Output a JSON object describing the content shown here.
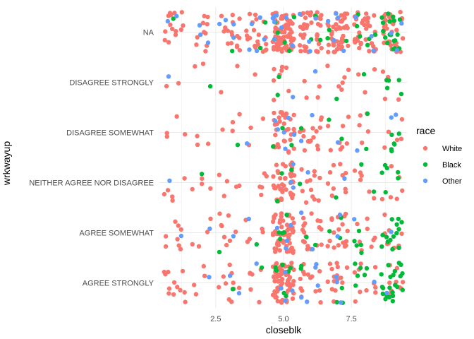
{
  "chart_data": {
    "type": "scatter",
    "jitter": true,
    "xlabel": "closeblk",
    "ylabel": "wrkwayup",
    "xlim": [
      0.45,
      9.55
    ],
    "x_ticks": [
      2.5,
      5.0,
      7.5
    ],
    "x_tick_labels": [
      "2.5",
      "5.0",
      "7.5"
    ],
    "categories": [
      "AGREE STRONGLY",
      "AGREE SOMEWHAT",
      "NEITHER AGREE NOR DISAGREE",
      "DISAGREE SOMEWHAT",
      "DISAGREE STRONGLY",
      "NA"
    ],
    "x_values": [
      1,
      2,
      3,
      4,
      5,
      6,
      7,
      8,
      9
    ],
    "grid": true,
    "legend": {
      "title": "race",
      "position": "right",
      "entries": [
        {
          "label": "White",
          "color": "#F8766D"
        },
        {
          "label": "Black",
          "color": "#00BA38"
        },
        {
          "label": "Other",
          "color": "#619CFF"
        }
      ]
    },
    "series": [
      {
        "name": "White",
        "color": "#F8766D",
        "counts": [
          [
            12,
            4,
            10,
            6,
            65,
            14,
            15,
            10,
            10
          ],
          [
            8,
            4,
            8,
            5,
            55,
            18,
            18,
            8,
            10
          ],
          [
            5,
            4,
            5,
            5,
            40,
            12,
            10,
            6,
            6
          ],
          [
            4,
            3,
            4,
            3,
            32,
            15,
            8,
            5,
            5
          ],
          [
            2,
            2,
            2,
            1,
            8,
            4,
            6,
            3,
            4
          ],
          [
            14,
            10,
            16,
            20,
            85,
            40,
            45,
            35,
            35
          ]
        ]
      },
      {
        "name": "Black",
        "color": "#00BA38",
        "counts": [
          [
            0,
            0,
            1,
            1,
            8,
            2,
            3,
            6,
            22
          ],
          [
            0,
            0,
            1,
            1,
            5,
            2,
            3,
            5,
            14
          ],
          [
            0,
            1,
            0,
            0,
            3,
            1,
            1,
            2,
            6
          ],
          [
            0,
            0,
            1,
            0,
            3,
            1,
            2,
            2,
            6
          ],
          [
            0,
            1,
            0,
            0,
            2,
            0,
            1,
            1,
            5
          ],
          [
            1,
            0,
            1,
            2,
            6,
            3,
            3,
            6,
            18
          ]
        ]
      },
      {
        "name": "Other",
        "color": "#619CFF",
        "counts": [
          [
            0,
            1,
            2,
            1,
            4,
            5,
            3,
            1,
            1
          ],
          [
            1,
            1,
            1,
            1,
            4,
            2,
            2,
            1,
            1
          ],
          [
            1,
            0,
            0,
            0,
            3,
            1,
            1,
            0,
            0
          ],
          [
            0,
            0,
            0,
            1,
            6,
            2,
            1,
            1,
            2
          ],
          [
            1,
            0,
            0,
            0,
            1,
            1,
            0,
            0,
            0
          ],
          [
            2,
            3,
            4,
            5,
            8,
            4,
            5,
            3,
            3
          ]
        ]
      }
    ]
  }
}
